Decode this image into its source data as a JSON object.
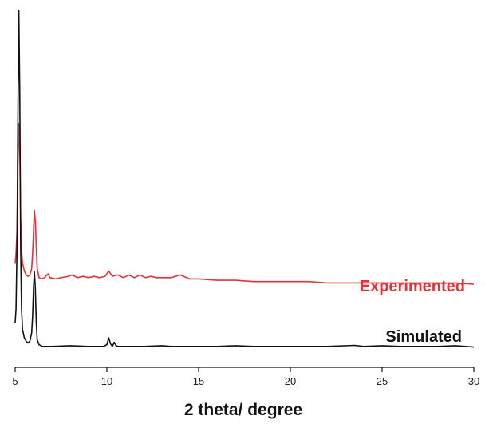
{
  "chart_data": {
    "type": "line",
    "title": "",
    "xlabel": "2 theta/ degree",
    "ylabel": "",
    "xlim": [
      5,
      30
    ],
    "ylim": [
      0,
      100
    ],
    "x_ticks": [
      "5",
      "10",
      "15",
      "20",
      "25",
      "30"
    ],
    "y_axis_visible": false,
    "grid": false,
    "legend": "inline labels at right end of each series",
    "series": [
      {
        "name": "Experimented",
        "color": "#e8303a",
        "x": [
          5.0,
          5.05,
          5.1,
          5.15,
          5.2,
          5.25,
          5.3,
          5.35,
          5.4,
          5.5,
          5.6,
          5.7,
          5.8,
          5.9,
          5.95,
          6.0,
          6.05,
          6.1,
          6.15,
          6.2,
          6.3,
          6.45,
          6.6,
          6.8,
          6.9,
          7.2,
          7.5,
          7.9,
          8.1,
          8.4,
          8.7,
          9.0,
          9.3,
          9.6,
          9.9,
          10.1,
          10.3,
          10.6,
          10.9,
          11.2,
          11.5,
          11.8,
          12.1,
          12.4,
          12.7,
          13.0,
          13.5,
          14.0,
          14.5,
          15.0,
          16.0,
          17.0,
          18.0,
          19.0,
          20.0,
          21.0,
          22.0,
          23.0,
          24.0,
          25.0,
          26.0,
          27.0,
          28.0,
          29.0,
          30.0
        ],
        "y": [
          18.0,
          22.0,
          30.0,
          55.0,
          71.0,
          60.0,
          35.0,
          23.0,
          18.0,
          15.0,
          13.5,
          13.0,
          13.5,
          16.0,
          22.0,
          30.0,
          38.0,
          34.0,
          24.0,
          16.0,
          12.5,
          12.0,
          12.5,
          14.0,
          12.5,
          12.0,
          12.5,
          13.0,
          13.5,
          12.5,
          13.0,
          12.5,
          13.0,
          12.5,
          13.0,
          15.0,
          13.0,
          13.5,
          12.5,
          13.5,
          12.5,
          13.5,
          12.5,
          13.0,
          12.5,
          12.5,
          12.5,
          13.5,
          12.0,
          12.0,
          11.5,
          11.5,
          11.0,
          11.0,
          11.0,
          11.0,
          10.5,
          10.5,
          10.5,
          10.5,
          10.5,
          10.5,
          10.5,
          10.5,
          10.0
        ]
      },
      {
        "name": "Simulated",
        "color": "#111111",
        "x": [
          5.0,
          5.05,
          5.1,
          5.15,
          5.2,
          5.25,
          5.3,
          5.35,
          5.4,
          5.5,
          5.6,
          5.7,
          5.8,
          5.9,
          5.95,
          6.0,
          6.05,
          6.1,
          6.15,
          6.2,
          6.3,
          6.5,
          7.0,
          8.0,
          9.0,
          9.8,
          10.0,
          10.1,
          10.2,
          10.3,
          10.4,
          10.5,
          10.6,
          10.7,
          11.0,
          12.0,
          13.0,
          13.5,
          14.0,
          15.0,
          16.0,
          17.0,
          18.0,
          20.0,
          22.0,
          23.5,
          24.0,
          25.0,
          26.0,
          28.0,
          29.0,
          30.0
        ],
        "y": [
          8.0,
          12.0,
          30.0,
          70.0,
          100.0,
          75.0,
          30.0,
          12.0,
          6.0,
          3.5,
          2.5,
          2.0,
          2.5,
          5.0,
          10.0,
          18.0,
          23.0,
          18.0,
          8.0,
          3.0,
          1.5,
          1.0,
          1.0,
          1.2,
          1.0,
          1.0,
          1.5,
          3.5,
          1.8,
          1.0,
          2.2,
          1.2,
          1.0,
          1.0,
          1.0,
          1.0,
          1.2,
          1.0,
          1.0,
          1.0,
          1.0,
          1.2,
          1.0,
          1.0,
          1.0,
          1.3,
          1.0,
          1.2,
          1.0,
          1.0,
          1.2,
          0.8
        ]
      }
    ]
  }
}
